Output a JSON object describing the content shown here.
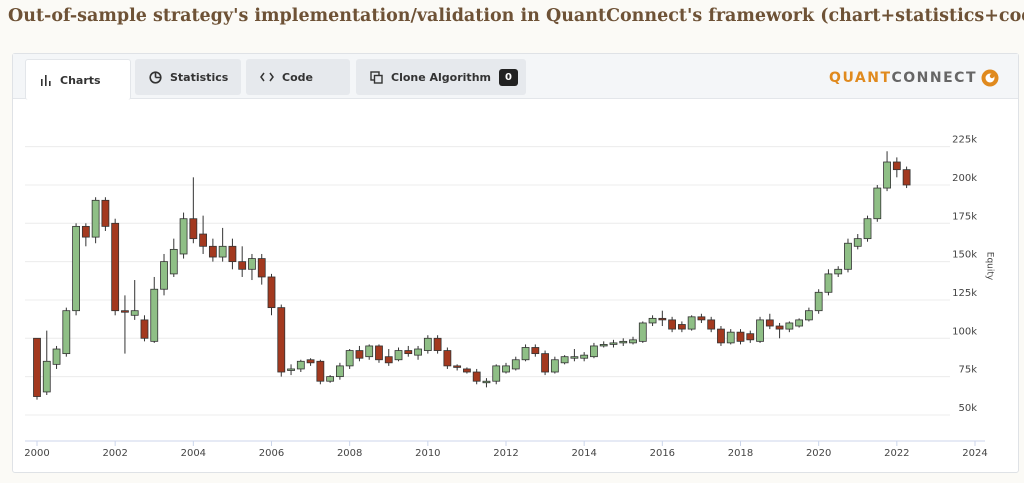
{
  "header": {
    "title": "Out-of-sample strategy's implementation/validation in QuantConnect's framework (chart+statistics+code)"
  },
  "tabs": [
    "Charts",
    "Statistics",
    "Code",
    "Clone Algorithm"
  ],
  "badge": "0",
  "logo": {
    "part1": "QUANT",
    "part2": "CONNECT"
  },
  "chart_data": {
    "type": "candlestick",
    "y_label": "Equity",
    "up_color": "#8fbf86",
    "down_color": "#a3391f",
    "grid": true,
    "xlim": [
      2000,
      2024
    ],
    "xticks": [
      2000,
      2002,
      2004,
      2006,
      2008,
      2010,
      2012,
      2014,
      2016,
      2018,
      2020,
      2022,
      2024
    ],
    "ylim": [
      33000,
      245000
    ],
    "yticks": [
      {
        "value": 50000,
        "label": "50k"
      },
      {
        "value": 75000,
        "label": "75k"
      },
      {
        "value": 100000,
        "label": "100k"
      },
      {
        "value": 125000,
        "label": "125k"
      },
      {
        "value": 150000,
        "label": "150k"
      },
      {
        "value": 175000,
        "label": "175k"
      },
      {
        "value": 200000,
        "label": "200k"
      },
      {
        "value": 225000,
        "label": "225k"
      }
    ],
    "x": [
      2000,
      2000.25,
      2000.5,
      2000.75,
      2001,
      2001.25,
      2001.5,
      2001.75,
      2002,
      2002.25,
      2002.5,
      2002.75,
      2003,
      2003.25,
      2003.5,
      2003.75,
      2004,
      2004.25,
      2004.5,
      2004.75,
      2005,
      2005.25,
      2005.5,
      2005.75,
      2006,
      2006.25,
      2006.5,
      2006.75,
      2007,
      2007.25,
      2007.5,
      2007.75,
      2008,
      2008.25,
      2008.5,
      2008.75,
      2009,
      2009.25,
      2009.5,
      2009.75,
      2010,
      2010.25,
      2010.5,
      2010.75,
      2011,
      2011.25,
      2011.5,
      2011.75,
      2012,
      2012.25,
      2012.5,
      2012.75,
      2013,
      2013.25,
      2013.5,
      2013.75,
      2014,
      2014.25,
      2014.5,
      2014.75,
      2015,
      2015.25,
      2015.5,
      2015.75,
      2016,
      2016.25,
      2016.5,
      2016.75,
      2017,
      2017.25,
      2017.5,
      2017.75,
      2018,
      2018.25,
      2018.5,
      2018.75,
      2019,
      2019.25,
      2019.5,
      2019.75,
      2020,
      2020.25,
      2020.5,
      2020.75,
      2021,
      2021.25,
      2021.5,
      2021.75,
      2022,
      2022.25
    ],
    "open": [
      100000,
      65000,
      83000,
      90000,
      118000,
      173000,
      166000,
      190000,
      175000,
      118000,
      115000,
      112000,
      98000,
      132000,
      142000,
      155000,
      178000,
      168000,
      160000,
      153000,
      160000,
      150000,
      145000,
      152000,
      140000,
      120000,
      79000,
      80000,
      86000,
      85000,
      72000,
      75000,
      82000,
      92000,
      88000,
      95000,
      88000,
      86000,
      92000,
      89000,
      92000,
      100000,
      92000,
      82000,
      80000,
      78000,
      71000,
      72000,
      78000,
      80000,
      86000,
      94000,
      90000,
      78000,
      84000,
      87000,
      87000,
      88000,
      95000,
      96000,
      97000,
      97000,
      98000,
      110000,
      113000,
      112000,
      109000,
      106000,
      114000,
      112000,
      106000,
      97000,
      104000,
      103000,
      98000,
      112000,
      108000,
      106000,
      108000,
      112000,
      118000,
      130000,
      142000,
      145000,
      160000,
      165000,
      178000,
      198000,
      215000,
      210000
    ],
    "high": [
      100000,
      105000,
      95000,
      120000,
      175000,
      175000,
      192000,
      192000,
      178000,
      128000,
      138000,
      115000,
      140000,
      155000,
      165000,
      182000,
      205000,
      180000,
      165000,
      172000,
      165000,
      160000,
      155000,
      155000,
      142000,
      122000,
      83000,
      86000,
      87000,
      86000,
      76000,
      84000,
      93000,
      95000,
      96000,
      96000,
      93000,
      94000,
      95000,
      95000,
      102000,
      102000,
      94000,
      83000,
      81000,
      80000,
      74000,
      83000,
      84000,
      88000,
      96000,
      96000,
      92000,
      88000,
      89000,
      93000,
      91000,
      97000,
      98000,
      99000,
      100000,
      101000,
      111000,
      115000,
      118000,
      114000,
      111000,
      115000,
      116000,
      114000,
      108000,
      106000,
      106000,
      105000,
      114000,
      116000,
      110000,
      111000,
      113000,
      120000,
      132000,
      145000,
      147000,
      165000,
      168000,
      180000,
      200000,
      222000,
      218000,
      212000
    ],
    "low": [
      60000,
      63000,
      80000,
      88000,
      115000,
      160000,
      162000,
      170000,
      115000,
      90000,
      112000,
      98000,
      97000,
      128000,
      140000,
      152000,
      162000,
      155000,
      150000,
      150000,
      145000,
      140000,
      138000,
      135000,
      115000,
      75000,
      76000,
      78000,
      82000,
      70000,
      71000,
      73000,
      80000,
      85000,
      86000,
      84000,
      82000,
      85000,
      88000,
      86000,
      90000,
      90000,
      80000,
      79000,
      77000,
      70000,
      68000,
      70000,
      77000,
      79000,
      85000,
      88000,
      76000,
      77000,
      83000,
      85000,
      85000,
      87000,
      94000,
      94000,
      95000,
      96000,
      97000,
      108000,
      108000,
      104000,
      104000,
      105000,
      110000,
      104000,
      95000,
      96000,
      96000,
      97000,
      97000,
      106000,
      100000,
      104000,
      107000,
      111000,
      116000,
      128000,
      140000,
      143000,
      158000,
      163000,
      176000,
      196000,
      205000,
      198000
    ],
    "close": [
      62000,
      85000,
      93000,
      118000,
      173000,
      166000,
      190000,
      173000,
      118000,
      117000,
      118000,
      100000,
      132000,
      150000,
      158000,
      178000,
      165000,
      160000,
      153000,
      160000,
      150000,
      145000,
      152000,
      140000,
      120000,
      78000,
      80000,
      85000,
      84000,
      72000,
      75000,
      82000,
      92000,
      87000,
      95000,
      86000,
      84000,
      92000,
      90000,
      93000,
      100000,
      92000,
      82000,
      81000,
      78000,
      72000,
      72000,
      82000,
      82000,
      86000,
      94000,
      90000,
      78000,
      86000,
      88000,
      88000,
      89000,
      95000,
      96000,
      97000,
      98000,
      99000,
      110000,
      113000,
      112000,
      106000,
      106000,
      114000,
      112000,
      106000,
      97000,
      104000,
      98000,
      99000,
      112000,
      108000,
      106000,
      110000,
      112000,
      118000,
      130000,
      142000,
      145000,
      162000,
      165000,
      178000,
      198000,
      215000,
      210000,
      200000
    ]
  }
}
